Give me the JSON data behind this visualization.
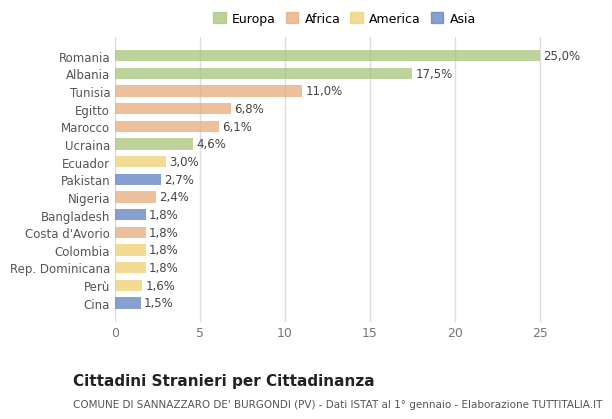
{
  "categories": [
    "Romania",
    "Albania",
    "Tunisia",
    "Egitto",
    "Marocco",
    "Ucraina",
    "Ecuador",
    "Pakistan",
    "Nigeria",
    "Bangladesh",
    "Costa d'Avorio",
    "Colombia",
    "Rep. Dominicana",
    "Perù",
    "Cina"
  ],
  "values": [
    25.0,
    17.5,
    11.0,
    6.8,
    6.1,
    4.6,
    3.0,
    2.7,
    2.4,
    1.8,
    1.8,
    1.8,
    1.8,
    1.6,
    1.5
  ],
  "continents": [
    "Europa",
    "Europa",
    "Africa",
    "Africa",
    "Africa",
    "Europa",
    "America",
    "Asia",
    "Africa",
    "Asia",
    "Africa",
    "America",
    "America",
    "America",
    "Asia"
  ],
  "continent_colors": {
    "Europa": "#a8c47a",
    "Africa": "#e8aa7a",
    "America": "#f0d070",
    "Asia": "#6080c0"
  },
  "legend_order": [
    "Europa",
    "Africa",
    "America",
    "Asia"
  ],
  "title": "Cittadini Stranieri per Cittadinanza",
  "subtitle": "COMUNE DI SANNAZZARO DE' BURGONDI (PV) - Dati ISTAT al 1° gennaio - Elaborazione TUTTITALIA.IT",
  "xlim": [
    0,
    27
  ],
  "xticks": [
    0,
    5,
    10,
    15,
    20,
    25
  ],
  "fig_bg_color": "#ffffff",
  "plot_bg_color": "#ffffff",
  "grid_color": "#dddddd",
  "bar_alpha": 0.75,
  "label_fontsize": 8.5,
  "ytick_fontsize": 8.5,
  "xtick_fontsize": 9,
  "title_fontsize": 11,
  "subtitle_fontsize": 7.5,
  "bar_height": 0.65
}
